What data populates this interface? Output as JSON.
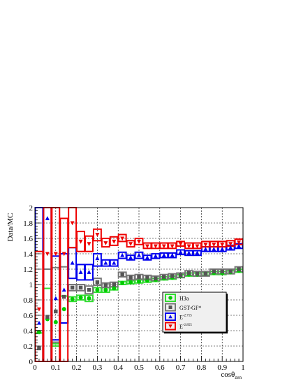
{
  "chart_data": {
    "type": "scatter",
    "title": "",
    "xlabel": "cosθ",
    "xlabel_sub": "zen",
    "ylabel": "Data/MC",
    "xlim": [
      0,
      1
    ],
    "ylim": [
      0,
      2
    ],
    "x_ticks": [
      "0",
      "0.1",
      "0.2",
      "0.3",
      "0.4",
      "0.5",
      "0.6",
      "0.7",
      "0.8",
      "0.9",
      "1"
    ],
    "y_ticks": [
      "0",
      "0.2",
      "0.4",
      "0.6",
      "0.8",
      "1",
      "1.2",
      "1.4",
      "1.6",
      "1.8",
      "2"
    ],
    "grid": true,
    "legend_position": "lower-right",
    "bin_edges": [
      0,
      0.04,
      0.08,
      0.12,
      0.16,
      0.2,
      0.24,
      0.28,
      0.32,
      0.36,
      0.4,
      0.44,
      0.48,
      0.52,
      0.56,
      0.6,
      0.64,
      0.68,
      0.72,
      0.76,
      0.8,
      0.84,
      0.88,
      0.92,
      0.96,
      1.0
    ],
    "series": [
      {
        "name": "H3a",
        "marker": "circle",
        "color": "#00cc00",
        "box_color": "#33dd33",
        "values": [
          0.38,
          0.55,
          0.51,
          0.68,
          0.81,
          0.83,
          0.82,
          0.93,
          0.93,
          0.95,
          1.02,
          1.03,
          1.04,
          1.05,
          1.06,
          1.08,
          1.09,
          1.11,
          1.13,
          1.13,
          1.14,
          1.15,
          1.15,
          1.16,
          1.18
        ],
        "box_low": [
          0.0,
          0.0,
          0.2,
          0.5,
          0.78,
          0.8,
          0.78,
          0.9,
          0.9,
          0.93,
          1.0,
          1.01,
          1.02,
          1.03,
          1.04,
          1.06,
          1.07,
          1.09,
          1.11,
          1.11,
          1.12,
          1.13,
          1.13,
          1.14,
          1.16
        ],
        "box_high": [
          0.37,
          0.95,
          0.23,
          0.85,
          0.84,
          0.86,
          0.86,
          0.96,
          0.96,
          0.97,
          1.04,
          1.05,
          1.06,
          1.07,
          1.08,
          1.1,
          1.11,
          1.13,
          1.15,
          1.15,
          1.16,
          1.17,
          1.17,
          1.18,
          1.2
        ]
      },
      {
        "name": "GST-GF*",
        "marker": "square",
        "color": "#555555",
        "box_color": "#777777",
        "values": [
          0.17,
          0.58,
          0.65,
          0.84,
          0.96,
          0.96,
          0.93,
          1.03,
          0.99,
          1.0,
          1.13,
          1.09,
          1.1,
          1.09,
          1.08,
          1.1,
          1.11,
          1.12,
          1.15,
          1.14,
          1.14,
          1.17,
          1.17,
          1.17,
          1.2
        ],
        "box_low": [
          0.0,
          0.0,
          0.25,
          0.5,
          0.92,
          0.92,
          0.88,
          0.99,
          0.96,
          0.97,
          1.1,
          1.06,
          1.07,
          1.06,
          1.05,
          1.07,
          1.08,
          1.09,
          1.12,
          1.11,
          1.11,
          1.14,
          1.14,
          1.14,
          1.17
        ],
        "box_high": [
          0.4,
          1.2,
          1.22,
          1.23,
          1.0,
          1.0,
          0.98,
          1.08,
          1.02,
          1.03,
          1.16,
          1.12,
          1.13,
          1.12,
          1.11,
          1.13,
          1.14,
          1.15,
          1.18,
          1.17,
          1.17,
          1.2,
          1.2,
          1.2,
          1.23
        ]
      },
      {
        "name": "E",
        "name_sup": "-2.715",
        "marker": "triangle-up",
        "color": "#0000ee",
        "box_color": "#0000ee",
        "values": [
          0.5,
          1.86,
          0.82,
          0.93,
          1.28,
          1.16,
          1.16,
          1.34,
          1.28,
          1.28,
          1.38,
          1.35,
          1.38,
          1.35,
          1.37,
          1.38,
          1.38,
          1.42,
          1.41,
          1.41,
          1.46,
          1.46,
          1.46,
          1.48,
          1.5
        ],
        "box_low": [
          0.0,
          0.0,
          0.28,
          0.5,
          1.08,
          1.06,
          1.06,
          1.24,
          1.24,
          1.24,
          1.34,
          1.32,
          1.34,
          1.32,
          1.34,
          1.35,
          1.35,
          1.39,
          1.38,
          1.38,
          1.43,
          1.43,
          1.43,
          1.45,
          1.47
        ],
        "box_high": [
          2.0,
          2.0,
          1.37,
          1.4,
          1.48,
          1.26,
          1.26,
          1.4,
          1.32,
          1.32,
          1.42,
          1.38,
          1.42,
          1.38,
          1.4,
          1.41,
          1.41,
          1.45,
          1.44,
          1.44,
          1.49,
          1.49,
          1.49,
          1.51,
          1.53
        ]
      },
      {
        "name": "E",
        "name_sup": "-2.855",
        "marker": "triangle-down",
        "color": "#ee0000",
        "box_color": "#ee0000",
        "values": [
          0.68,
          1.4,
          1.4,
          1.4,
          1.8,
          1.56,
          1.53,
          1.65,
          1.54,
          1.56,
          1.6,
          1.53,
          1.56,
          1.5,
          1.5,
          1.5,
          1.5,
          1.53,
          1.5,
          1.5,
          1.52,
          1.52,
          1.52,
          1.53,
          1.55
        ],
        "box_low": [
          0.0,
          0.0,
          0.0,
          0.0,
          1.48,
          1.43,
          1.43,
          1.57,
          1.49,
          1.51,
          1.56,
          1.49,
          1.52,
          1.47,
          1.47,
          1.47,
          1.47,
          1.5,
          1.47,
          1.47,
          1.49,
          1.49,
          1.49,
          1.5,
          1.52
        ],
        "box_high": [
          1.43,
          2.0,
          2.0,
          1.86,
          2.0,
          1.69,
          1.63,
          1.72,
          1.6,
          1.62,
          1.65,
          1.57,
          1.6,
          1.54,
          1.54,
          1.54,
          1.54,
          1.56,
          1.54,
          1.54,
          1.56,
          1.56,
          1.56,
          1.57,
          1.59
        ]
      }
    ]
  }
}
